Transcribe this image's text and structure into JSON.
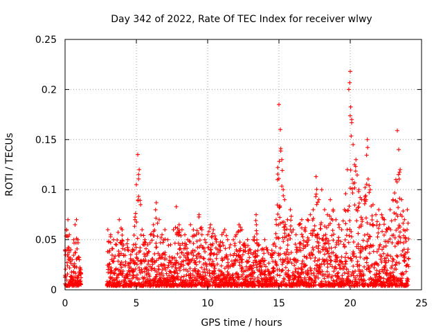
{
  "chart_data": {
    "type": "scatter",
    "title": "Day 342 of 2022, Rate Of TEC Index for receiver wlwy",
    "xlabel": "GPS time / hours",
    "ylabel": "ROTI / TECUs",
    "xlim": [
      0,
      25
    ],
    "ylim": [
      0,
      0.25
    ],
    "x_ticks": [
      "0",
      "5",
      "10",
      "15",
      "20",
      "25"
    ],
    "y_ticks": [
      "0",
      "0.05",
      "0.1",
      "0.15",
      "0.2",
      "0.25"
    ],
    "grid": true,
    "marker": "plus",
    "marker_color": "#ff0000",
    "coverage": [
      [
        0,
        1.15
      ],
      [
        2.95,
        24.1
      ]
    ],
    "series": [
      {
        "x": [
          0.0,
          0.1,
          0.2,
          0.3,
          0.4,
          0.5,
          0.6,
          0.7,
          0.8,
          0.9,
          1.0,
          1.1,
          3.0,
          3.2,
          3.4,
          3.6,
          3.8,
          4.0,
          4.2,
          4.4,
          4.6,
          4.8,
          4.9,
          5.0,
          5.1,
          5.2,
          5.3,
          5.4,
          5.6,
          5.8,
          6.0,
          6.2,
          6.4,
          6.6,
          6.8,
          7.0,
          7.2,
          7.4,
          7.6,
          7.8,
          8.0,
          8.2,
          8.4,
          8.6,
          8.8,
          9.0,
          9.2,
          9.4,
          9.6,
          9.8,
          10.0,
          10.2,
          10.4,
          10.6,
          10.8,
          11.0,
          11.2,
          11.4,
          11.6,
          11.8,
          12.0,
          12.2,
          12.4,
          12.6,
          12.8,
          13.0,
          13.2,
          13.4,
          13.6,
          13.8,
          14.0,
          14.2,
          14.4,
          14.6,
          14.8,
          14.9,
          15.0,
          15.1,
          15.2,
          15.3,
          15.4,
          15.6,
          15.8,
          16.0,
          16.2,
          16.4,
          16.6,
          16.8,
          17.0,
          17.2,
          17.4,
          17.6,
          17.8,
          18.0,
          18.2,
          18.4,
          18.6,
          18.8,
          19.0,
          19.2,
          19.4,
          19.6,
          19.8,
          19.9,
          20.0,
          20.1,
          20.2,
          20.3,
          20.4,
          20.6,
          20.8,
          21.0,
          21.2,
          21.4,
          21.6,
          21.8,
          22.0,
          22.2,
          22.4,
          22.6,
          22.8,
          23.0,
          23.2,
          23.3,
          23.4,
          23.5,
          23.6,
          23.8,
          24.0
        ],
        "y": [
          0.04,
          0.06,
          0.07,
          0.055,
          0.04,
          0.03,
          0.05,
          0.065,
          0.07,
          0.05,
          0.03,
          0.02,
          0.06,
          0.055,
          0.05,
          0.045,
          0.07,
          0.06,
          0.04,
          0.05,
          0.035,
          0.045,
          0.07,
          0.105,
          0.135,
          0.12,
          0.085,
          0.06,
          0.05,
          0.045,
          0.055,
          0.065,
          0.087,
          0.07,
          0.055,
          0.06,
          0.05,
          0.045,
          0.06,
          0.083,
          0.065,
          0.06,
          0.055,
          0.05,
          0.065,
          0.06,
          0.055,
          0.075,
          0.06,
          0.05,
          0.055,
          0.065,
          0.06,
          0.05,
          0.045,
          0.055,
          0.06,
          0.05,
          0.045,
          0.05,
          0.055,
          0.065,
          0.06,
          0.045,
          0.05,
          0.04,
          0.05,
          0.075,
          0.045,
          0.04,
          0.05,
          0.04,
          0.035,
          0.045,
          0.07,
          0.11,
          0.185,
          0.16,
          0.13,
          0.1,
          0.09,
          0.07,
          0.08,
          0.06,
          0.055,
          0.065,
          0.07,
          0.06,
          0.07,
          0.075,
          0.08,
          0.113,
          0.09,
          0.1,
          0.08,
          0.075,
          0.09,
          0.08,
          0.07,
          0.065,
          0.06,
          0.08,
          0.12,
          0.2,
          0.218,
          0.17,
          0.145,
          0.125,
          0.13,
          0.1,
          0.09,
          0.09,
          0.15,
          0.1,
          0.085,
          0.075,
          0.08,
          0.075,
          0.07,
          0.06,
          0.08,
          0.09,
          0.11,
          0.159,
          0.14,
          0.12,
          0.09,
          0.07,
          0.08
        ]
      }
    ]
  }
}
